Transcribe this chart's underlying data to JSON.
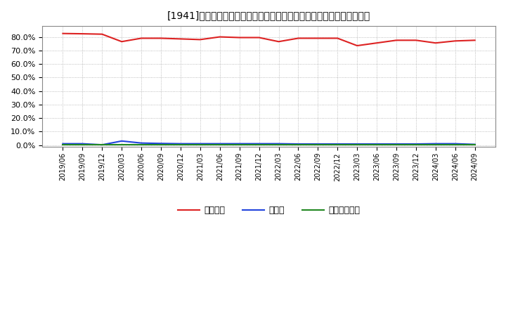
{
  "title": "[1941]　自己資本、のれん、繰延税金資産の総資産に対する比率の推移",
  "x_labels": [
    "2019/06",
    "2019/09",
    "2019/12",
    "2020/03",
    "2020/06",
    "2020/09",
    "2020/12",
    "2021/03",
    "2021/06",
    "2021/09",
    "2021/12",
    "2022/03",
    "2022/06",
    "2022/09",
    "2022/12",
    "2023/03",
    "2023/06",
    "2023/09",
    "2023/12",
    "2024/03",
    "2024/06",
    "2024/09"
  ],
  "equity_ratio": [
    82.5,
    82.3,
    82.0,
    76.5,
    79.0,
    79.0,
    78.5,
    78.0,
    80.0,
    79.5,
    79.5,
    76.5,
    79.0,
    79.0,
    79.0,
    73.5,
    75.5,
    77.5,
    77.5,
    75.5,
    77.0,
    77.5
  ],
  "noren_ratio": [
    1.0,
    1.0,
    0.2,
    3.0,
    1.5,
    1.2,
    1.0,
    1.0,
    1.0,
    1.0,
    1.0,
    1.0,
    0.8,
    0.8,
    0.8,
    0.8,
    0.8,
    0.8,
    0.8,
    1.0,
    1.0,
    0.5
  ],
  "deferred_ratio": [
    0.3,
    0.3,
    0.3,
    0.3,
    0.3,
    0.3,
    0.3,
    0.3,
    0.3,
    0.3,
    0.3,
    0.3,
    0.3,
    0.3,
    0.3,
    0.3,
    0.3,
    0.3,
    0.3,
    0.3,
    0.3,
    0.3
  ],
  "equity_color": "#dd2222",
  "noren_color": "#2244dd",
  "deferred_color": "#228822",
  "background_color": "#ffffff",
  "grid_color": "#aaaaaa",
  "ylim": [
    -1.5,
    88
  ],
  "yticks": [
    0.0,
    10.0,
    20.0,
    30.0,
    40.0,
    50.0,
    60.0,
    70.0,
    80.0
  ],
  "legend_labels": [
    "自己資本",
    "のれん",
    "繰延税金資産"
  ]
}
